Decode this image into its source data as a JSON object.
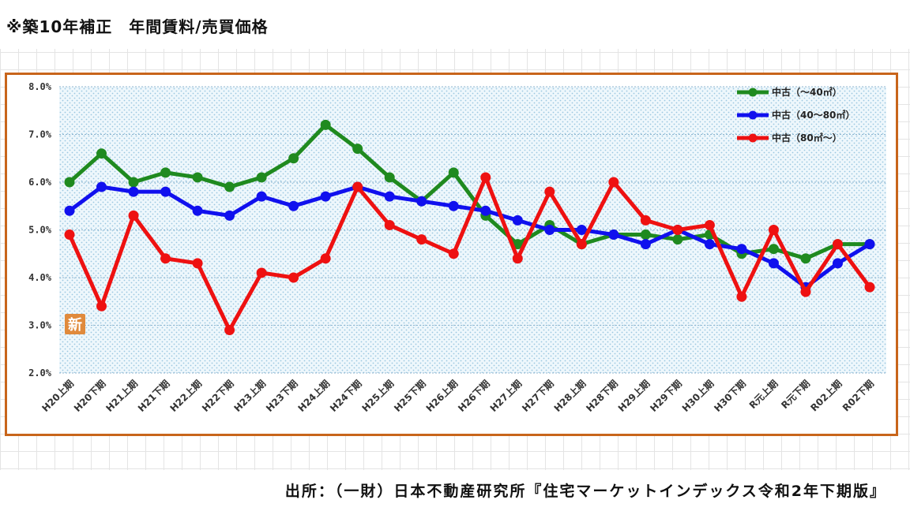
{
  "header": {
    "title": "※築10年補正　年間賃料/売買価格"
  },
  "footer": {
    "source": "出所：（一財）日本不動産研究所『住宅マーケットインデックス令和2年下期版』"
  },
  "badge": {
    "label": "新",
    "color": "#e08a3c"
  },
  "colors": {
    "frame": "#c8651b",
    "plot_bg": "#e8f4fb",
    "dots": "#9cc7e0"
  },
  "chart_data": {
    "type": "line",
    "title": "",
    "xlabel": "",
    "ylabel": "",
    "ylim": [
      0.02,
      0.08
    ],
    "yticks": [
      "8.0%",
      "7.0%",
      "6.0%",
      "5.0%",
      "4.0%",
      "3.0%",
      "2.0%"
    ],
    "grid": true,
    "legend_position": "top-right",
    "categories": [
      "H20上期",
      "H20下期",
      "H21上期",
      "H21下期",
      "H22上期",
      "H22下期",
      "H23上期",
      "H23下期",
      "H24上期",
      "H24下期",
      "H25上期",
      "H25下期",
      "H26上期",
      "H26下期",
      "H27上期",
      "H27下期",
      "H28上期",
      "H28下期",
      "H29上期",
      "H29下期",
      "H30上期",
      "H30下期",
      "R元上期",
      "R元下期",
      "R02上期",
      "R02下期"
    ],
    "series": [
      {
        "name": "中古（～40㎡）",
        "color": "#1f8a1f",
        "values": [
          0.06,
          0.066,
          0.06,
          0.062,
          0.061,
          0.059,
          0.061,
          0.065,
          0.072,
          0.067,
          0.061,
          0.056,
          0.062,
          0.053,
          0.047,
          0.051,
          0.047,
          0.049,
          0.049,
          0.048,
          0.049,
          0.045,
          0.046,
          0.044,
          0.047,
          0.047
        ]
      },
      {
        "name": "中古（40～80㎡）",
        "color": "#1010ee",
        "values": [
          0.054,
          0.059,
          0.058,
          0.058,
          0.054,
          0.053,
          0.057,
          0.055,
          0.057,
          0.059,
          0.057,
          0.056,
          0.055,
          0.054,
          0.052,
          0.05,
          0.05,
          0.049,
          0.047,
          0.05,
          0.047,
          0.046,
          0.043,
          0.038,
          0.043,
          0.047
        ]
      },
      {
        "name": "中古（80㎡～）",
        "color": "#ee1111",
        "values": [
          0.049,
          0.034,
          0.053,
          0.044,
          0.043,
          0.029,
          0.041,
          0.04,
          0.044,
          0.059,
          0.051,
          0.048,
          0.045,
          0.061,
          0.044,
          0.058,
          0.047,
          0.06,
          0.052,
          0.05,
          0.051,
          0.036,
          0.05,
          0.037,
          0.047,
          0.038
        ]
      }
    ]
  }
}
